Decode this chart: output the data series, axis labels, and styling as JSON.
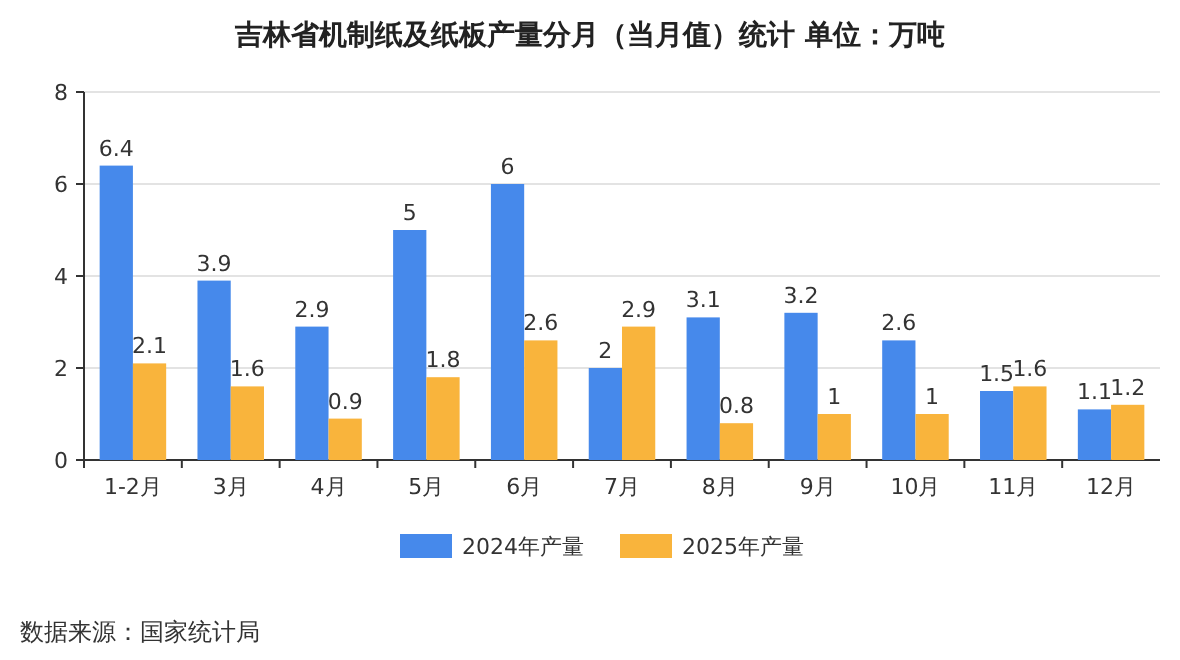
{
  "chart_data": {
    "type": "bar",
    "title": "吉林省机制纸及纸板产量分月（当月值）统计  单位：万吨",
    "categories": [
      "1-2月",
      "3月",
      "4月",
      "5月",
      "6月",
      "7月",
      "8月",
      "9月",
      "10月",
      "11月",
      "12月"
    ],
    "series": [
      {
        "name": "2024年产量",
        "color": "#4689eb",
        "values": [
          6.4,
          3.9,
          2.9,
          5,
          6,
          2,
          3.1,
          3.2,
          2.6,
          1.5,
          1.1
        ]
      },
      {
        "name": "2025年产量",
        "color": "#f9b43c",
        "values": [
          2.1,
          1.6,
          0.9,
          1.8,
          2.6,
          2.9,
          0.8,
          1,
          1,
          1.6,
          1.2
        ]
      }
    ],
    "ylim": [
      0,
      8
    ],
    "yticks": [
      0,
      2,
      4,
      6,
      8
    ],
    "grid": "y",
    "legend": "bottom",
    "data_labels": true,
    "annotations": [
      "数据来源：国家统计局"
    ]
  }
}
